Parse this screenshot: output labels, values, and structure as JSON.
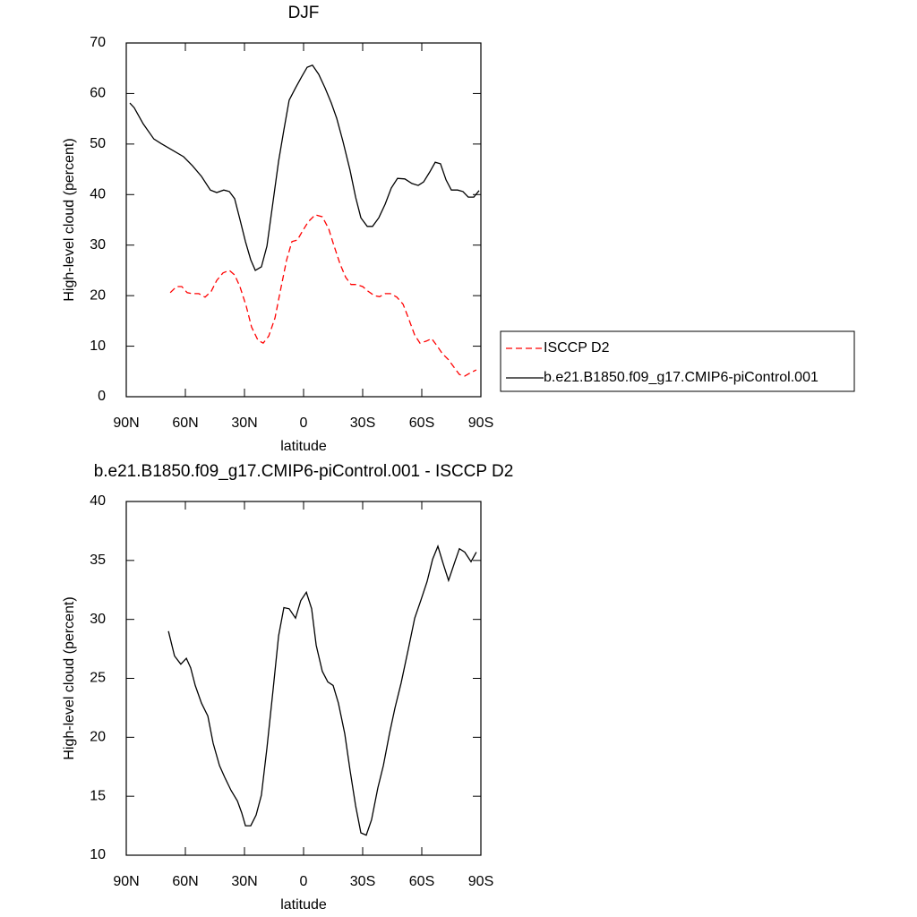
{
  "chart_data": [
    {
      "type": "line",
      "title": "DJF",
      "xlabel": "latitude",
      "ylabel": "High-level cloud (percent)",
      "xlim": [
        90,
        -90
      ],
      "xticks": [
        {
          "value": 90,
          "label": "90N"
        },
        {
          "value": 60,
          "label": "60N"
        },
        {
          "value": 30,
          "label": "30N"
        },
        0,
        {
          "value": -30,
          "label": "30S"
        },
        {
          "value": -60,
          "label": "60S"
        },
        {
          "value": -90,
          "label": "90S"
        }
      ],
      "ylim": [
        0,
        70
      ],
      "yticks": [
        0,
        10,
        20,
        30,
        40,
        50,
        60,
        70
      ],
      "legend": "right",
      "series": [
        {
          "name": "ISCCP D2",
          "color": "#ff0000",
          "line_style": "dashed",
          "x": [
            67.7,
            64.5,
            61.8,
            59.1,
            56.4,
            53.2,
            50,
            46.8,
            44.1,
            40.9,
            37.7,
            35,
            32.3,
            29.1,
            26.4,
            23.2,
            20.5,
            17.7,
            14.5,
            11.8,
            8.6,
            5.9,
            3.2,
            0.5,
            -2.3,
            -5.9,
            -9.5,
            -12.7,
            -15.5,
            -18.6,
            -21.4,
            -24.1,
            -26.8,
            -30,
            -32.7,
            -35.9,
            -38.6,
            -41.4,
            -44.1,
            -47.3,
            -50.5,
            -53.2,
            -56.4,
            -59.1,
            -62.3,
            -65,
            -67.7,
            -70.5,
            -73.6,
            -76.4,
            -79.1,
            -81.8,
            -85,
            -87.7
          ],
          "values": [
            20.6,
            21.8,
            21.8,
            20.6,
            20.4,
            20.4,
            19.7,
            20.9,
            23,
            24.5,
            25,
            24.1,
            21.8,
            17.9,
            13.8,
            11.2,
            10.6,
            12,
            15.6,
            20.9,
            27.1,
            30.7,
            31,
            32.8,
            34.6,
            36,
            35.6,
            33.3,
            29.8,
            26.2,
            23.6,
            22.2,
            22.2,
            21.8,
            20.9,
            20,
            19.8,
            20.4,
            20.4,
            19.7,
            18.3,
            15.6,
            12.2,
            10.6,
            11,
            11.5,
            10.1,
            8.5,
            7.3,
            5.8,
            4.4,
            4.1,
            4.8,
            5.3
          ]
        },
        {
          "name": "b.e21.B1850.f09_g17.CMIP6-piControl.001",
          "color": "#000000",
          "line_style": "solid",
          "x": [
            88.2,
            86,
            81.4,
            76,
            72.3,
            60.9,
            56.4,
            51.8,
            47.3,
            44.1,
            40.5,
            37.7,
            35,
            32.3,
            29.5,
            26.8,
            24.5,
            21.4,
            18.6,
            15.5,
            12.7,
            10,
            7.3,
            4.1,
            1,
            -1.8,
            -4.5,
            -7.7,
            -10.9,
            -14.1,
            -16.8,
            -20,
            -23.6,
            -26.4,
            -29.1,
            -32.3,
            -35,
            -38.2,
            -41.4,
            -44.5,
            -47.7,
            -51.4,
            -55,
            -58.2,
            -60.9,
            -64.1,
            -66.8,
            -69.5,
            -72.3,
            -75,
            -78.2,
            -80.9,
            -83.6,
            -86.4,
            -89.1
          ],
          "values": [
            58.1,
            57.2,
            54,
            51,
            50.1,
            47.5,
            45.7,
            43.6,
            40.9,
            40.4,
            40.9,
            40.6,
            39.2,
            35.1,
            30.7,
            27.1,
            25,
            25.7,
            29.8,
            38.6,
            46.6,
            52.8,
            58.7,
            61.1,
            63.3,
            65.2,
            65.6,
            63.8,
            61.1,
            58.1,
            55.1,
            50.5,
            44.8,
            39.5,
            35.4,
            33.7,
            33.7,
            35.4,
            38.1,
            41.3,
            43.2,
            43.1,
            42.2,
            41.8,
            42.5,
            44.5,
            46.4,
            46.1,
            42.9,
            40.9,
            40.9,
            40.6,
            39.5,
            39.5,
            40.8
          ]
        }
      ]
    },
    {
      "type": "line",
      "title": "b.e21.B1850.f09_g17.CMIP6-piControl.001 - ISCCP D2",
      "xlabel": "latitude",
      "ylabel": "High-level cloud (percent)",
      "xlim": [
        90,
        -90
      ],
      "xticks": [
        {
          "value": 90,
          "label": "90N"
        },
        {
          "value": 60,
          "label": "60N"
        },
        {
          "value": 30,
          "label": "30N"
        },
        0,
        {
          "value": -30,
          "label": "30S"
        },
        {
          "value": -60,
          "label": "60S"
        },
        {
          "value": -90,
          "label": "90S"
        }
      ],
      "ylim": [
        10,
        40
      ],
      "yticks": [
        10,
        15,
        20,
        25,
        30,
        35,
        40
      ],
      "color": "#000000",
      "x": [
        68.6,
        65.5,
        62.3,
        59.5,
        57.3,
        55,
        51.8,
        48.6,
        45.9,
        42.7,
        40,
        36.8,
        33.6,
        31.4,
        29.5,
        26.8,
        24.1,
        21.4,
        18.6,
        15.5,
        12.7,
        10,
        7.3,
        4.1,
        1.4,
        -1.4,
        -4.1,
        -6.4,
        -9.5,
        -12.3,
        -15,
        -17.7,
        -20.9,
        -23.6,
        -26.4,
        -29.1,
        -31.8,
        -34.5,
        -37.7,
        -40.5,
        -43.6,
        -46.4,
        -49.5,
        -53.2,
        -56.4,
        -59.5,
        -62.7,
        -65.5,
        -68.2,
        -70.9,
        -73.6,
        -76.4,
        -79.1,
        -81.8,
        -85,
        -87.7
      ],
      "values": [
        29,
        26.9,
        26.2,
        26.7,
        25.9,
        24.4,
        22.9,
        21.8,
        19.5,
        17.6,
        16.6,
        15.5,
        14.6,
        13.6,
        12.5,
        12.5,
        13.4,
        15.1,
        19.1,
        24,
        28.6,
        31,
        30.9,
        30.1,
        31.6,
        32.3,
        30.9,
        27.8,
        25.6,
        24.7,
        24.4,
        22.9,
        20.3,
        17.2,
        14.2,
        11.9,
        11.7,
        13,
        15.7,
        17.6,
        20.3,
        22.5,
        24.6,
        27.5,
        30.1,
        31.6,
        33.2,
        35.1,
        36.2,
        34.7,
        33.3,
        34.7,
        36,
        35.7,
        34.9,
        35.7
      ]
    }
  ]
}
